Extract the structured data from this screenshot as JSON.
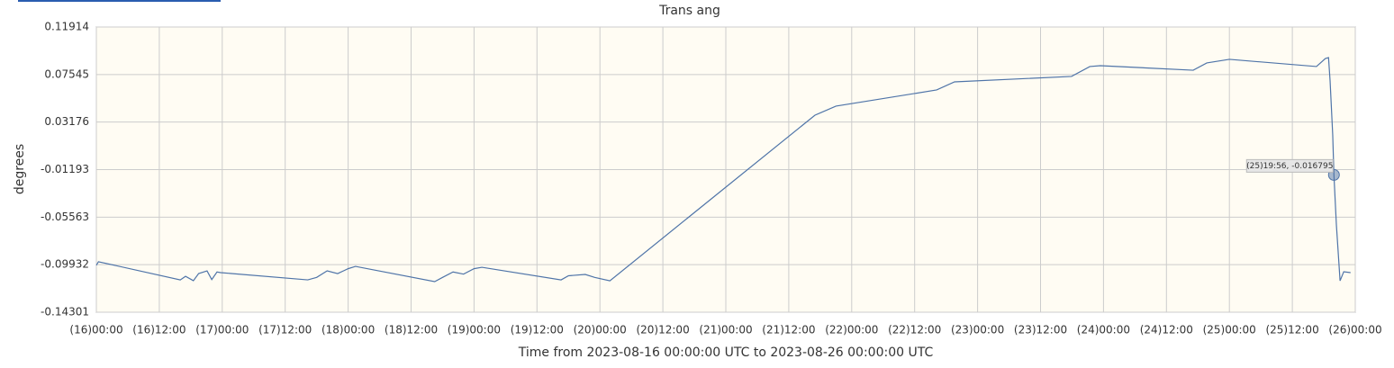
{
  "chart_data": {
    "type": "line",
    "title": "Trans ang",
    "y_label": "degrees",
    "x_label": "Time from 2023-08-16 00:00:00 UTC to 2023-08-26 00:00:00 UTC",
    "color": "#4f74a8",
    "grid": true,
    "xlim": [
      0,
      240
    ],
    "ylim": [
      -0.14301,
      0.11914
    ],
    "yticks": [
      -0.14301,
      -0.09932,
      -0.05563,
      -0.01193,
      0.03176,
      0.07545,
      0.11914
    ],
    "xticks": [
      {
        "value": 0,
        "label": "(16)00:00"
      },
      {
        "value": 12,
        "label": "(16)12:00"
      },
      {
        "value": 24,
        "label": "(17)00:00"
      },
      {
        "value": 36,
        "label": "(17)12:00"
      },
      {
        "value": 48,
        "label": "(18)00:00"
      },
      {
        "value": 60,
        "label": "(18)12:00"
      },
      {
        "value": 72,
        "label": "(19)00:00"
      },
      {
        "value": 84,
        "label": "(19)12:00"
      },
      {
        "value": 96,
        "label": "(20)00:00"
      },
      {
        "value": 108,
        "label": "(20)12:00"
      },
      {
        "value": 120,
        "label": "(21)00:00"
      },
      {
        "value": 132,
        "label": "(21)12:00"
      },
      {
        "value": 144,
        "label": "(22)00:00"
      },
      {
        "value": 156,
        "label": "(22)12:00"
      },
      {
        "value": 168,
        "label": "(23)00:00"
      },
      {
        "value": 180,
        "label": "(23)12:00"
      },
      {
        "value": 192,
        "label": "(24)00:00"
      },
      {
        "value": 204,
        "label": "(24)12:00"
      },
      {
        "value": 216,
        "label": "(25)00:00"
      },
      {
        "value": 228,
        "label": "(25)12:00"
      },
      {
        "value": 240,
        "label": "(26)00:00"
      }
    ],
    "x": [
      0,
      0.4,
      16,
      17,
      18.5,
      19.5,
      21.1,
      22,
      23,
      23.7,
      40.3,
      42,
      44,
      46,
      48,
      49.4,
      64.5,
      66,
      68,
      70,
      72,
      73.5,
      88.6,
      90,
      93.2,
      95,
      97.9,
      137,
      141,
      160.2,
      163.6,
      185.9,
      189.4,
      191.4,
      209.1,
      211.7,
      216,
      232.6,
      234.3,
      234.9,
      235.2,
      235.7,
      235.93,
      236.4,
      237.1,
      237.8,
      239.1
    ],
    "values": [
      -0.0999,
      -0.0966,
      -0.1133,
      -0.11,
      -0.114,
      -0.1075,
      -0.105,
      -0.113,
      -0.106,
      -0.1066,
      -0.1133,
      -0.111,
      -0.105,
      -0.1075,
      -0.103,
      -0.1009,
      -0.1149,
      -0.111,
      -0.106,
      -0.108,
      -0.103,
      -0.1017,
      -0.1133,
      -0.1095,
      -0.1083,
      -0.111,
      -0.1141,
      0.0381,
      0.0464,
      0.0613,
      0.0687,
      0.0737,
      0.0828,
      0.0836,
      0.0794,
      0.0861,
      0.0894,
      0.0828,
      0.0902,
      0.091,
      0.0695,
      0.0199,
      -0.016795,
      -0.0628,
      -0.1141,
      -0.1058,
      -0.1066
    ],
    "annotation": "(25)19:56, -0.016795"
  }
}
